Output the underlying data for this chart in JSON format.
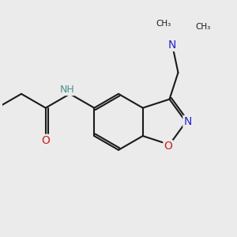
{
  "background_color": "#ebebeb",
  "bond_color": "#1a1a1a",
  "bond_width": 1.5,
  "atom_colors": {
    "N": "#2424cc",
    "O": "#cc2020",
    "NH": "#4a8f8f",
    "C": "#1a1a1a"
  },
  "font_size": 9,
  "fig_width": 3.0,
  "fig_height": 3.0,
  "dpi": 100,
  "xlim": [
    -3.2,
    3.6
  ],
  "ylim": [
    -2.2,
    2.2
  ]
}
